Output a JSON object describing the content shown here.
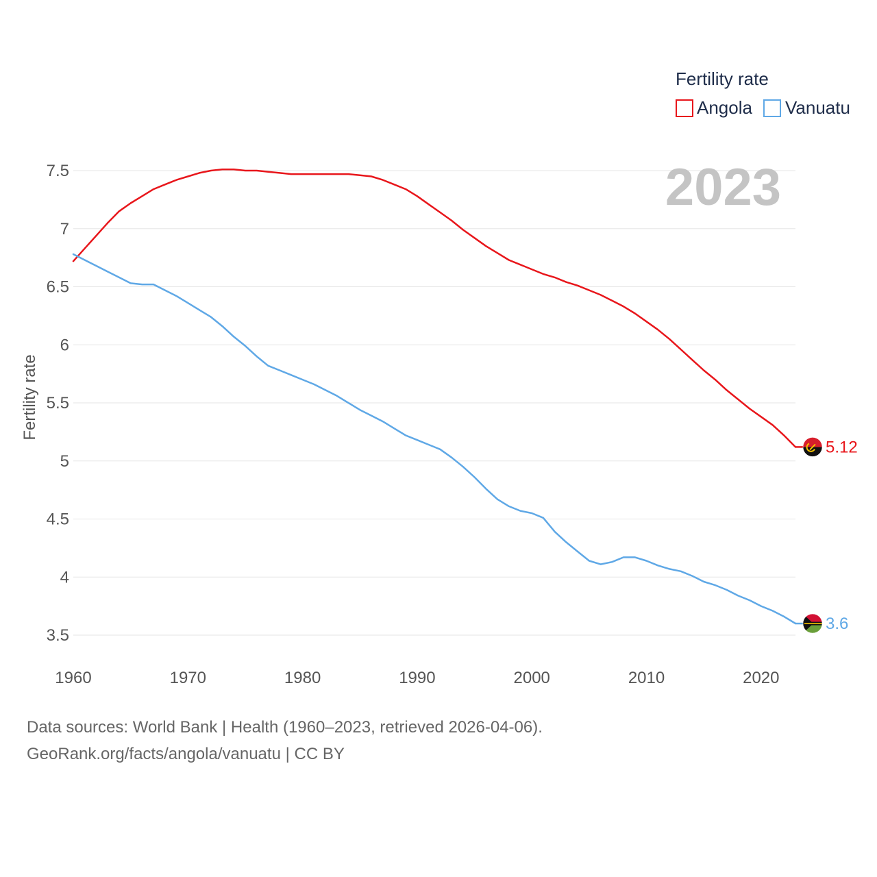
{
  "chart_data": {
    "type": "line",
    "title": "",
    "legend_title": "Fertility rate",
    "legend_position": "top-right",
    "year_label": "2023",
    "xlabel": "",
    "ylabel": "Fertility rate",
    "xlim": [
      1960,
      2023
    ],
    "ylim": [
      3.3,
      7.6
    ],
    "x_ticks": [
      1960,
      1970,
      1980,
      1990,
      2000,
      2010,
      2020
    ],
    "y_ticks": [
      3.5,
      4,
      4.5,
      5,
      5.5,
      6,
      6.5,
      7,
      7.5
    ],
    "y_tick_labels": [
      "3.5",
      "4",
      "4.5",
      "5",
      "5.5",
      "6",
      "6.5",
      "7",
      "7.5"
    ],
    "grid": true,
    "x": [
      1960,
      1961,
      1962,
      1963,
      1964,
      1965,
      1966,
      1967,
      1968,
      1969,
      1970,
      1971,
      1972,
      1973,
      1974,
      1975,
      1976,
      1977,
      1978,
      1979,
      1980,
      1981,
      1982,
      1983,
      1984,
      1985,
      1986,
      1987,
      1988,
      1989,
      1990,
      1991,
      1992,
      1993,
      1994,
      1995,
      1996,
      1997,
      1998,
      1999,
      2000,
      2001,
      2002,
      2003,
      2004,
      2005,
      2006,
      2007,
      2008,
      2009,
      2010,
      2011,
      2012,
      2013,
      2014,
      2015,
      2016,
      2017,
      2018,
      2019,
      2020,
      2021,
      2022,
      2023
    ],
    "series": [
      {
        "name": "Angola",
        "color": "#e8161b",
        "end_label": "5.12",
        "values": [
          6.72,
          6.83,
          6.94,
          7.05,
          7.15,
          7.22,
          7.28,
          7.34,
          7.38,
          7.42,
          7.45,
          7.48,
          7.5,
          7.51,
          7.51,
          7.5,
          7.5,
          7.49,
          7.48,
          7.47,
          7.47,
          7.47,
          7.47,
          7.47,
          7.47,
          7.46,
          7.45,
          7.42,
          7.38,
          7.34,
          7.28,
          7.21,
          7.14,
          7.07,
          6.99,
          6.92,
          6.85,
          6.79,
          6.73,
          6.69,
          6.65,
          6.61,
          6.58,
          6.54,
          6.51,
          6.47,
          6.43,
          6.38,
          6.33,
          6.27,
          6.2,
          6.13,
          6.05,
          5.96,
          5.87,
          5.78,
          5.7,
          5.61,
          5.53,
          5.45,
          5.38,
          5.31,
          5.22,
          5.12
        ]
      },
      {
        "name": "Vanuatu",
        "color": "#5fa8e6",
        "end_label": "3.6",
        "values": [
          6.78,
          6.73,
          6.68,
          6.63,
          6.58,
          6.53,
          6.52,
          6.52,
          6.47,
          6.42,
          6.36,
          6.3,
          6.24,
          6.16,
          6.07,
          5.99,
          5.9,
          5.82,
          5.78,
          5.74,
          5.7,
          5.66,
          5.61,
          5.56,
          5.5,
          5.44,
          5.39,
          5.34,
          5.28,
          5.22,
          5.18,
          5.14,
          5.1,
          5.03,
          4.95,
          4.86,
          4.76,
          4.67,
          4.61,
          4.57,
          4.55,
          4.51,
          4.39,
          4.3,
          4.22,
          4.14,
          4.11,
          4.13,
          4.17,
          4.17,
          4.14,
          4.1,
          4.07,
          4.05,
          4.01,
          3.96,
          3.93,
          3.89,
          3.84,
          3.8,
          3.75,
          3.71,
          3.66,
          3.6
        ]
      }
    ]
  },
  "footer": {
    "line1": "Data sources: World Bank | Health (1960–2023, retrieved 2026-04-06).",
    "line2": "GeoRank.org/facts/angola/vanuatu | CC BY"
  },
  "flags": {
    "angola_icon": "angola-flag-icon",
    "vanuatu_icon": "vanuatu-flag-icon"
  }
}
